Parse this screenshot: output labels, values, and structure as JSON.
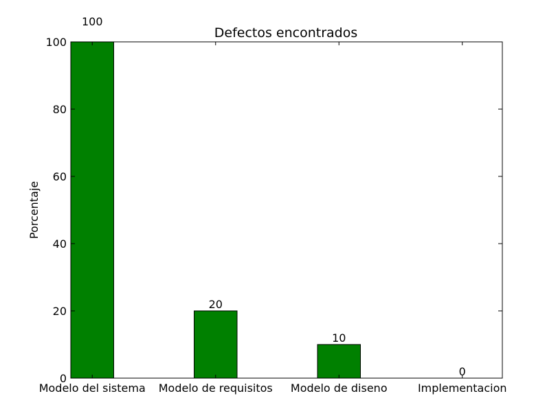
{
  "chart_data": {
    "type": "bar",
    "title": "Defectos encontrados",
    "xlabel": "",
    "ylabel": "Porcentaje",
    "categories": [
      "Modelo del sistema",
      "Modelo de requisitos",
      "Modelo de diseno",
      "Implementacion"
    ],
    "values": [
      100,
      20,
      10,
      0
    ],
    "data_labels": [
      "100",
      "20",
      "10",
      "0"
    ],
    "ylim": [
      0,
      100
    ],
    "yticks": [
      0,
      20,
      40,
      60,
      80,
      100
    ],
    "ytick_labels": [
      "0",
      "20",
      "40",
      "60",
      "80",
      "100"
    ],
    "bar_color": "#008000",
    "edge_color": "#000000",
    "grid": false
  }
}
